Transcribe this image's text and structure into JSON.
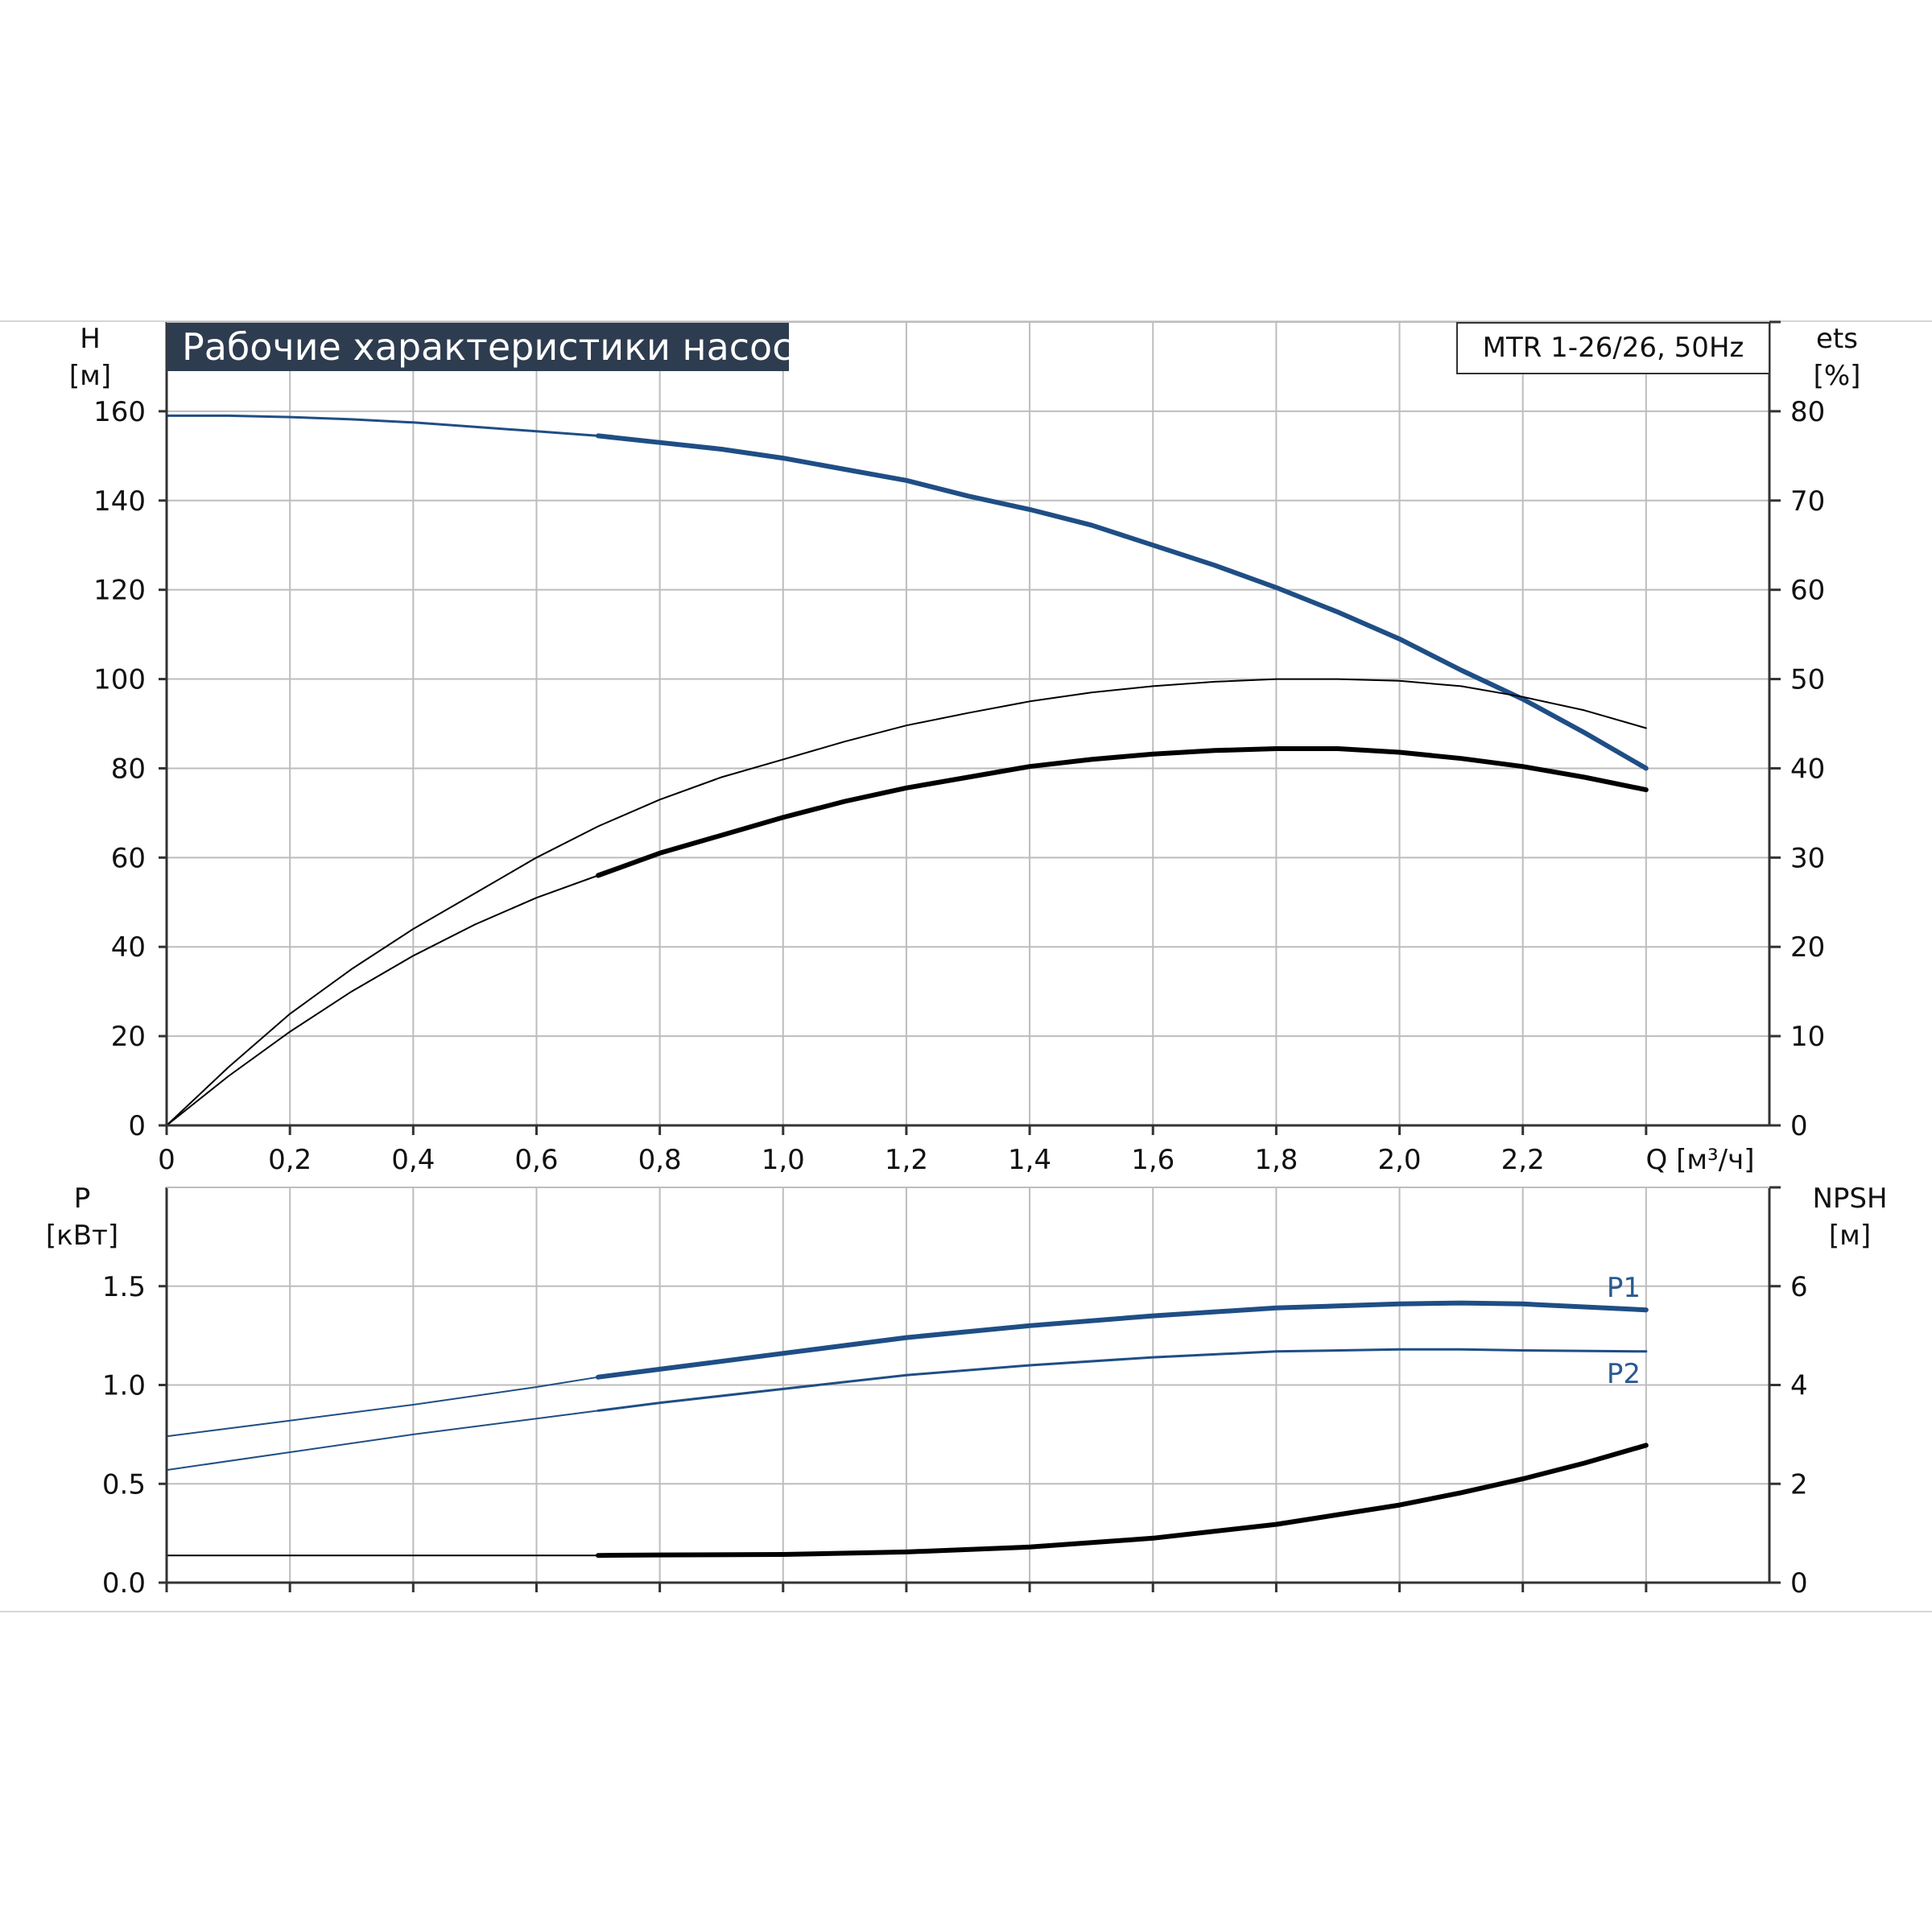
{
  "chart_data": [
    {
      "type": "line",
      "panel": "top",
      "title": "Рабочие характеристики насоса",
      "model": "MTR 1-26/26, 50Hz",
      "ylabel_left": "H",
      "yunit_left": "[м]",
      "ylabel_right": "ets",
      "yunit_right": "[%]",
      "xlabel": "Q [м³/ч]",
      "xlim": [
        0,
        2.6
      ],
      "ylim_left": [
        0,
        180
      ],
      "ylim_right": [
        0,
        90
      ],
      "x_ticks": [
        "0",
        "0,2",
        "0,4",
        "0,6",
        "0,8",
        "1,0",
        "1,2",
        "1,4",
        "1,6",
        "1,8",
        "2,0",
        "2,2"
      ],
      "y_ticks_left": [
        "0",
        "20",
        "40",
        "60",
        "80",
        "100",
        "120",
        "140",
        "160"
      ],
      "y_ticks_right": [
        "0",
        "10",
        "20",
        "30",
        "40",
        "50",
        "60",
        "70",
        "80"
      ],
      "grid": true,
      "series": [
        {
          "axis": "left",
          "color": "#1f4e85",
          "width_thin": 3,
          "width_thick": 6,
          "thick_from": 0.7,
          "x": [
            0,
            0.1,
            0.2,
            0.3,
            0.4,
            0.5,
            0.6,
            0.7,
            0.8,
            0.9,
            1.0,
            1.1,
            1.2,
            1.3,
            1.4,
            1.5,
            1.6,
            1.7,
            1.8,
            1.9,
            2.0,
            2.1,
            2.2,
            2.3,
            2.4
          ],
          "y": [
            159,
            159,
            158.7,
            158.2,
            157.5,
            156.5,
            155.5,
            154.5,
            153,
            151.5,
            149.5,
            147,
            144.5,
            141,
            138,
            134.5,
            130,
            125.5,
            120.5,
            115,
            109,
            102,
            95.5,
            88,
            80
          ]
        },
        {
          "axis": "right",
          "color": "#000000",
          "width_thin": 2,
          "width_thick": 2,
          "thick_from": 0.7,
          "x": [
            0,
            0.1,
            0.2,
            0.3,
            0.4,
            0.5,
            0.6,
            0.7,
            0.8,
            0.9,
            1.0,
            1.1,
            1.2,
            1.3,
            1.4,
            1.5,
            1.6,
            1.7,
            1.8,
            1.9,
            2.0,
            2.1,
            2.2,
            2.3,
            2.4
          ],
          "y": [
            0,
            6.5,
            12.5,
            17.5,
            22,
            26,
            30,
            33.5,
            36.5,
            39,
            41,
            43,
            44.8,
            46.2,
            47.5,
            48.5,
            49.2,
            49.7,
            50,
            50,
            49.8,
            49.2,
            48,
            46.5,
            44.5
          ]
        },
        {
          "axis": "right",
          "color": "#000000",
          "width_thin": 2,
          "width_thick": 6,
          "thick_from": 0.7,
          "x": [
            0,
            0.1,
            0.2,
            0.3,
            0.4,
            0.5,
            0.6,
            0.7,
            0.8,
            0.9,
            1.0,
            1.1,
            1.2,
            1.3,
            1.4,
            1.5,
            1.6,
            1.7,
            1.8,
            1.9,
            2.0,
            2.1,
            2.2,
            2.3,
            2.4
          ],
          "y": [
            0,
            5.5,
            10.5,
            15,
            19,
            22.5,
            25.5,
            28,
            30.5,
            32.5,
            34.5,
            36.3,
            37.8,
            39,
            40.2,
            41,
            41.6,
            42,
            42.2,
            42.2,
            41.8,
            41.1,
            40.2,
            39,
            37.6
          ]
        }
      ]
    },
    {
      "type": "line",
      "panel": "bottom",
      "ylabel_left": "P",
      "yunit_left": "[кВт]",
      "ylabel_right": "NPSH",
      "yunit_right": "[м]",
      "xlim": [
        0,
        2.6
      ],
      "ylim_left": [
        0,
        2
      ],
      "ylim_right": [
        0,
        8
      ],
      "y_ticks_left": [
        "0.0",
        "0.5",
        "1.0",
        "1.5"
      ],
      "y_ticks_right": [
        "0",
        "2",
        "4",
        "6"
      ],
      "grid": true,
      "series": [
        {
          "name": "P1",
          "axis": "left",
          "color": "#1f4e85",
          "width_thin": 2,
          "width_thick": 6,
          "thick_from": 0.7,
          "x": [
            0,
            0.2,
            0.4,
            0.6,
            0.7,
            0.8,
            1.0,
            1.2,
            1.4,
            1.6,
            1.8,
            2.0,
            2.1,
            2.2,
            2.4
          ],
          "y": [
            0.74,
            0.82,
            0.9,
            0.99,
            1.04,
            1.08,
            1.16,
            1.24,
            1.3,
            1.35,
            1.39,
            1.41,
            1.415,
            1.41,
            1.38
          ]
        },
        {
          "name": "P2",
          "axis": "left",
          "color": "#1f4e85",
          "width_thin": 2,
          "width_thick": 3,
          "thick_from": 0.7,
          "x": [
            0,
            0.2,
            0.4,
            0.6,
            0.7,
            0.8,
            1.0,
            1.2,
            1.4,
            1.6,
            1.8,
            2.0,
            2.1,
            2.2,
            2.4
          ],
          "y": [
            0.57,
            0.66,
            0.75,
            0.83,
            0.87,
            0.91,
            0.98,
            1.05,
            1.1,
            1.14,
            1.17,
            1.18,
            1.18,
            1.175,
            1.17
          ]
        },
        {
          "axis": "right",
          "color": "#000000",
          "width_thin": 2,
          "width_thick": 6,
          "thick_from": 0.7,
          "x": [
            0,
            0.7,
            0.8,
            1.0,
            1.2,
            1.4,
            1.6,
            1.8,
            2.0,
            2.1,
            2.2,
            2.3,
            2.4
          ],
          "y": [
            0.55,
            0.55,
            0.56,
            0.57,
            0.62,
            0.72,
            0.9,
            1.18,
            1.57,
            1.82,
            2.1,
            2.42,
            2.78
          ]
        }
      ]
    }
  ]
}
